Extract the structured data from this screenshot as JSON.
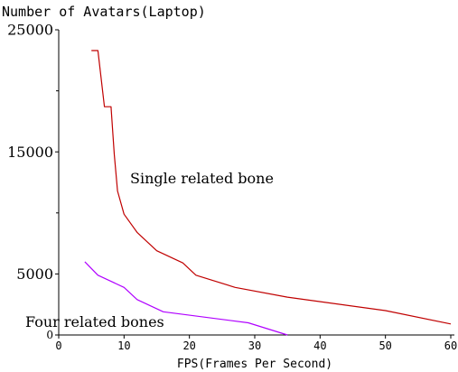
{
  "chart_data": {
    "type": "line",
    "title": "",
    "ylabel": "Number of Avatars(Laptop)",
    "xlabel": "FPS(Frames Per Second)",
    "xlim": [
      0,
      60
    ],
    "ylim": [
      0,
      25000
    ],
    "x_ticks": [
      0,
      10,
      20,
      30,
      40,
      50,
      60
    ],
    "x_tick_labels": [
      "0",
      "10",
      "20",
      "30",
      "40",
      "50",
      "60"
    ],
    "y_ticks": [
      0,
      5000,
      15000,
      25000
    ],
    "y_tick_labels": [
      "0",
      "5000",
      "15000",
      "25000"
    ],
    "y_minor_ticks": [
      10000,
      20000
    ],
    "grid": false,
    "series": [
      {
        "name": "Single related bone",
        "color": "#c00000",
        "points": [
          [
            5,
            23300
          ],
          [
            6,
            23300
          ],
          [
            7,
            18700
          ],
          [
            8,
            18700
          ],
          [
            8.5,
            14800
          ],
          [
            9,
            11800
          ],
          [
            10,
            9900
          ],
          [
            12,
            8400
          ],
          [
            15,
            6900
          ],
          [
            19,
            5900
          ],
          [
            21,
            4900
          ],
          [
            27,
            3900
          ],
          [
            35,
            3100
          ],
          [
            50,
            2000
          ],
          [
            60,
            900
          ]
        ]
      },
      {
        "name": "Four related bones",
        "color": "#b000ff",
        "points": [
          [
            4,
            6000
          ],
          [
            6,
            4900
          ],
          [
            10,
            3900
          ],
          [
            12,
            2900
          ],
          [
            16,
            1900
          ],
          [
            29,
            1000
          ],
          [
            35,
            0
          ]
        ]
      }
    ]
  }
}
